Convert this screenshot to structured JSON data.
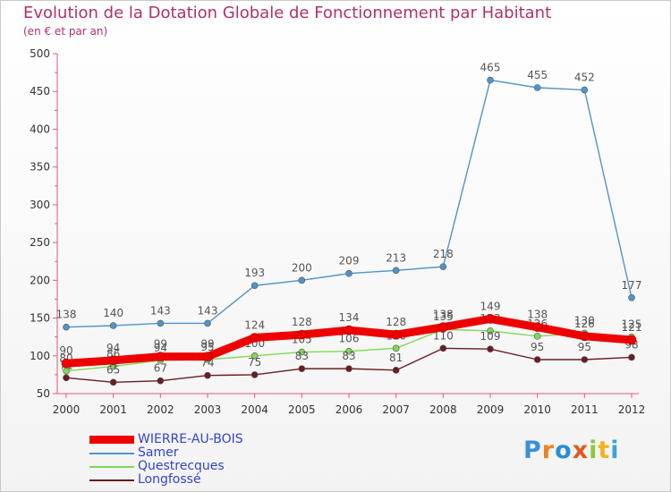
{
  "chart_data": {
    "type": "line",
    "title": "Evolution de la Dotation Globale de Fonctionnement par Habitant",
    "subtitle": "(en € et par an)",
    "categories": [
      "2000",
      "2001",
      "2002",
      "2003",
      "2004",
      "2005",
      "2006",
      "2007",
      "2008",
      "2009",
      "2010",
      "2011",
      "2012"
    ],
    "ylim": [
      50,
      500
    ],
    "yticks": [
      50,
      100,
      150,
      200,
      250,
      300,
      350,
      400,
      450,
      500
    ],
    "grid": false,
    "legend_position": "bottom-left",
    "series": [
      {
        "name": "WIERRE-AU-BOIS",
        "color": "#ee0000",
        "values": [
          90,
          94,
          99,
          99,
          124,
          128,
          134,
          128,
          138,
          149,
          138,
          126,
          121
        ]
      },
      {
        "name": "Samer",
        "color": "#4f94c8",
        "values": [
          138,
          140,
          143,
          143,
          193,
          200,
          209,
          213,
          218,
          465,
          455,
          452,
          177
        ]
      },
      {
        "name": "Questrecques",
        "color": "#7ed957",
        "values": [
          80,
          86,
          94,
          95,
          100,
          105,
          106,
          110,
          135,
          133,
          126,
          130,
          125
        ]
      },
      {
        "name": "Longfossé",
        "color": "#6b1c24",
        "values": [
          71,
          65,
          67,
          74,
          75,
          83,
          83,
          81,
          110,
          109,
          95,
          95,
          98
        ]
      }
    ]
  },
  "brand": {
    "letters": [
      "P",
      "r",
      "o",
      "x",
      "i",
      "t",
      "i"
    ],
    "colors": [
      "#3b8fd9",
      "#e8851c",
      "#2a8fd0",
      "#e25b1c",
      "#8cc63f",
      "#f2b21e",
      "#3aa4d8"
    ]
  }
}
